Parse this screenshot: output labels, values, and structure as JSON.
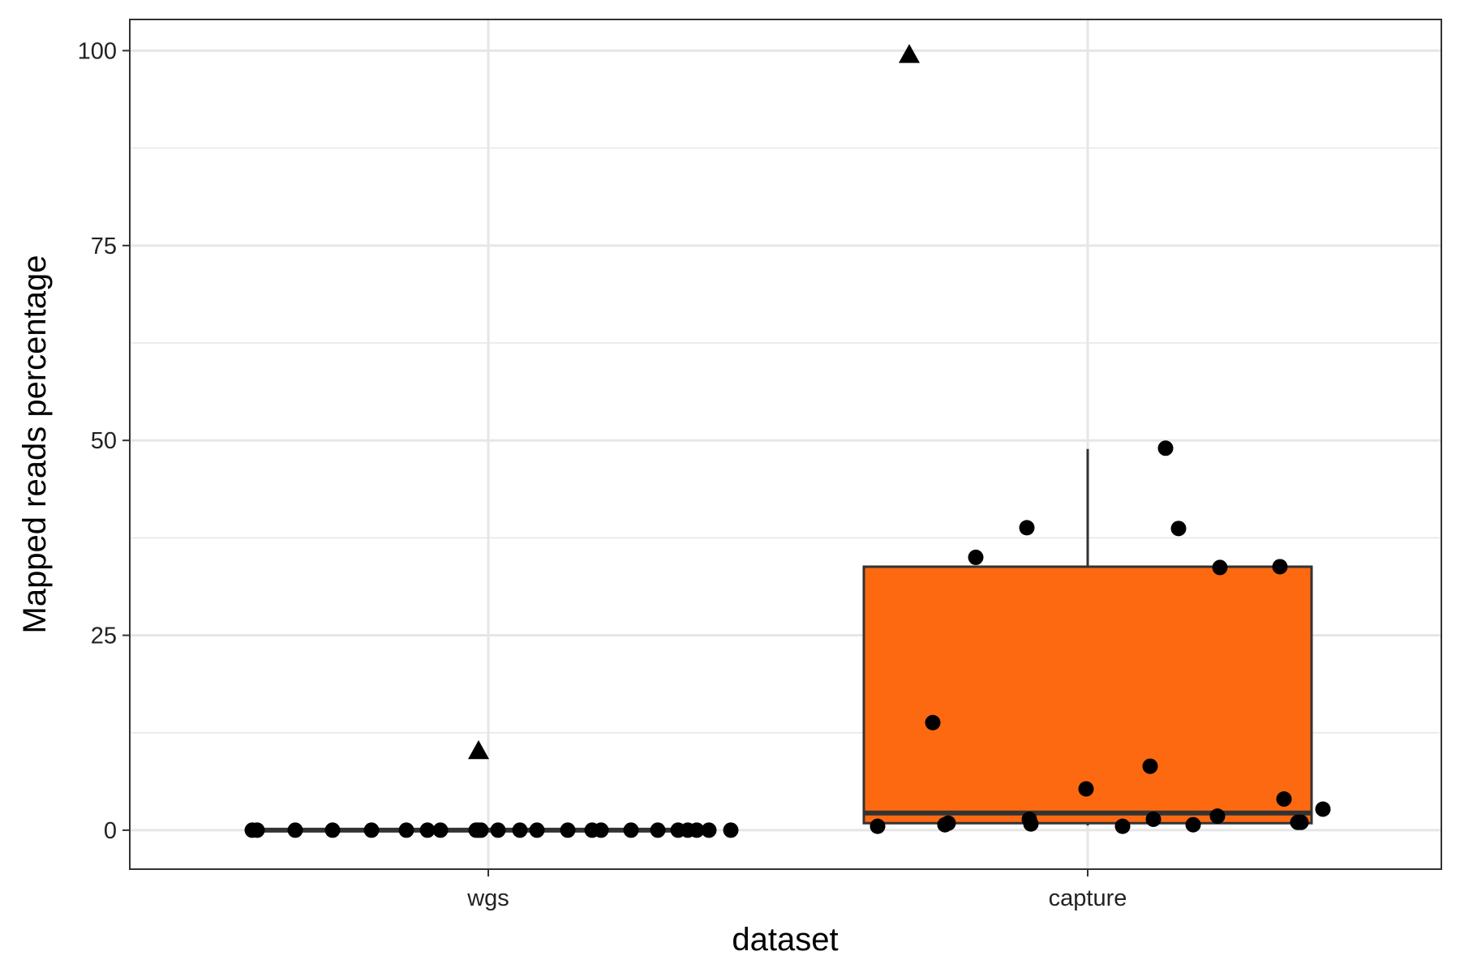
{
  "chart_data": {
    "type": "boxplot",
    "title": "",
    "xlabel": "dataset",
    "ylabel": "Mapped reads percentage",
    "categories": [
      "wgs",
      "capture"
    ],
    "ylim": [
      -5,
      104
    ],
    "yticks": [
      0,
      25,
      50,
      75,
      100
    ],
    "grid": true,
    "colors": {
      "box_fill": [
        "#ffffff",
        "#fc6911"
      ],
      "box_stroke": "#333333",
      "points": "#000000",
      "grid": "#e6e6e6",
      "panel_border": "#333333"
    },
    "boxes": [
      {
        "category": "wgs",
        "q1": 0.0,
        "median": 0.0,
        "q3": 0.0,
        "whisker_low": 0.0,
        "whisker_high": 0.0
      },
      {
        "category": "capture",
        "q1": 0.9,
        "median": 2.2,
        "q3": 33.8,
        "whisker_low": 0.6,
        "whisker_high": 48.9
      }
    ],
    "outliers": [
      {
        "category": "wgs",
        "value": 10.2,
        "shape": "triangle"
      },
      {
        "category": "capture",
        "value": 99.5,
        "shape": "triangle"
      }
    ],
    "points": [
      {
        "category": "wgs",
        "values": [
          0,
          0,
          0,
          0,
          0,
          0,
          0,
          0,
          0,
          0,
          0,
          0,
          0,
          0,
          0,
          0,
          0,
          0,
          0,
          0,
          0,
          0,
          0,
          0
        ]
      },
      {
        "category": "capture",
        "values": [
          0.5,
          13.8,
          0.7,
          0.9,
          35.0,
          38.8,
          0.8,
          1.4,
          5.3,
          0.5,
          8.2,
          1.4,
          49.0,
          38.7,
          0.7,
          1.8,
          33.7,
          33.8,
          4.0,
          1.0,
          1.0,
          2.7
        ]
      }
    ]
  }
}
